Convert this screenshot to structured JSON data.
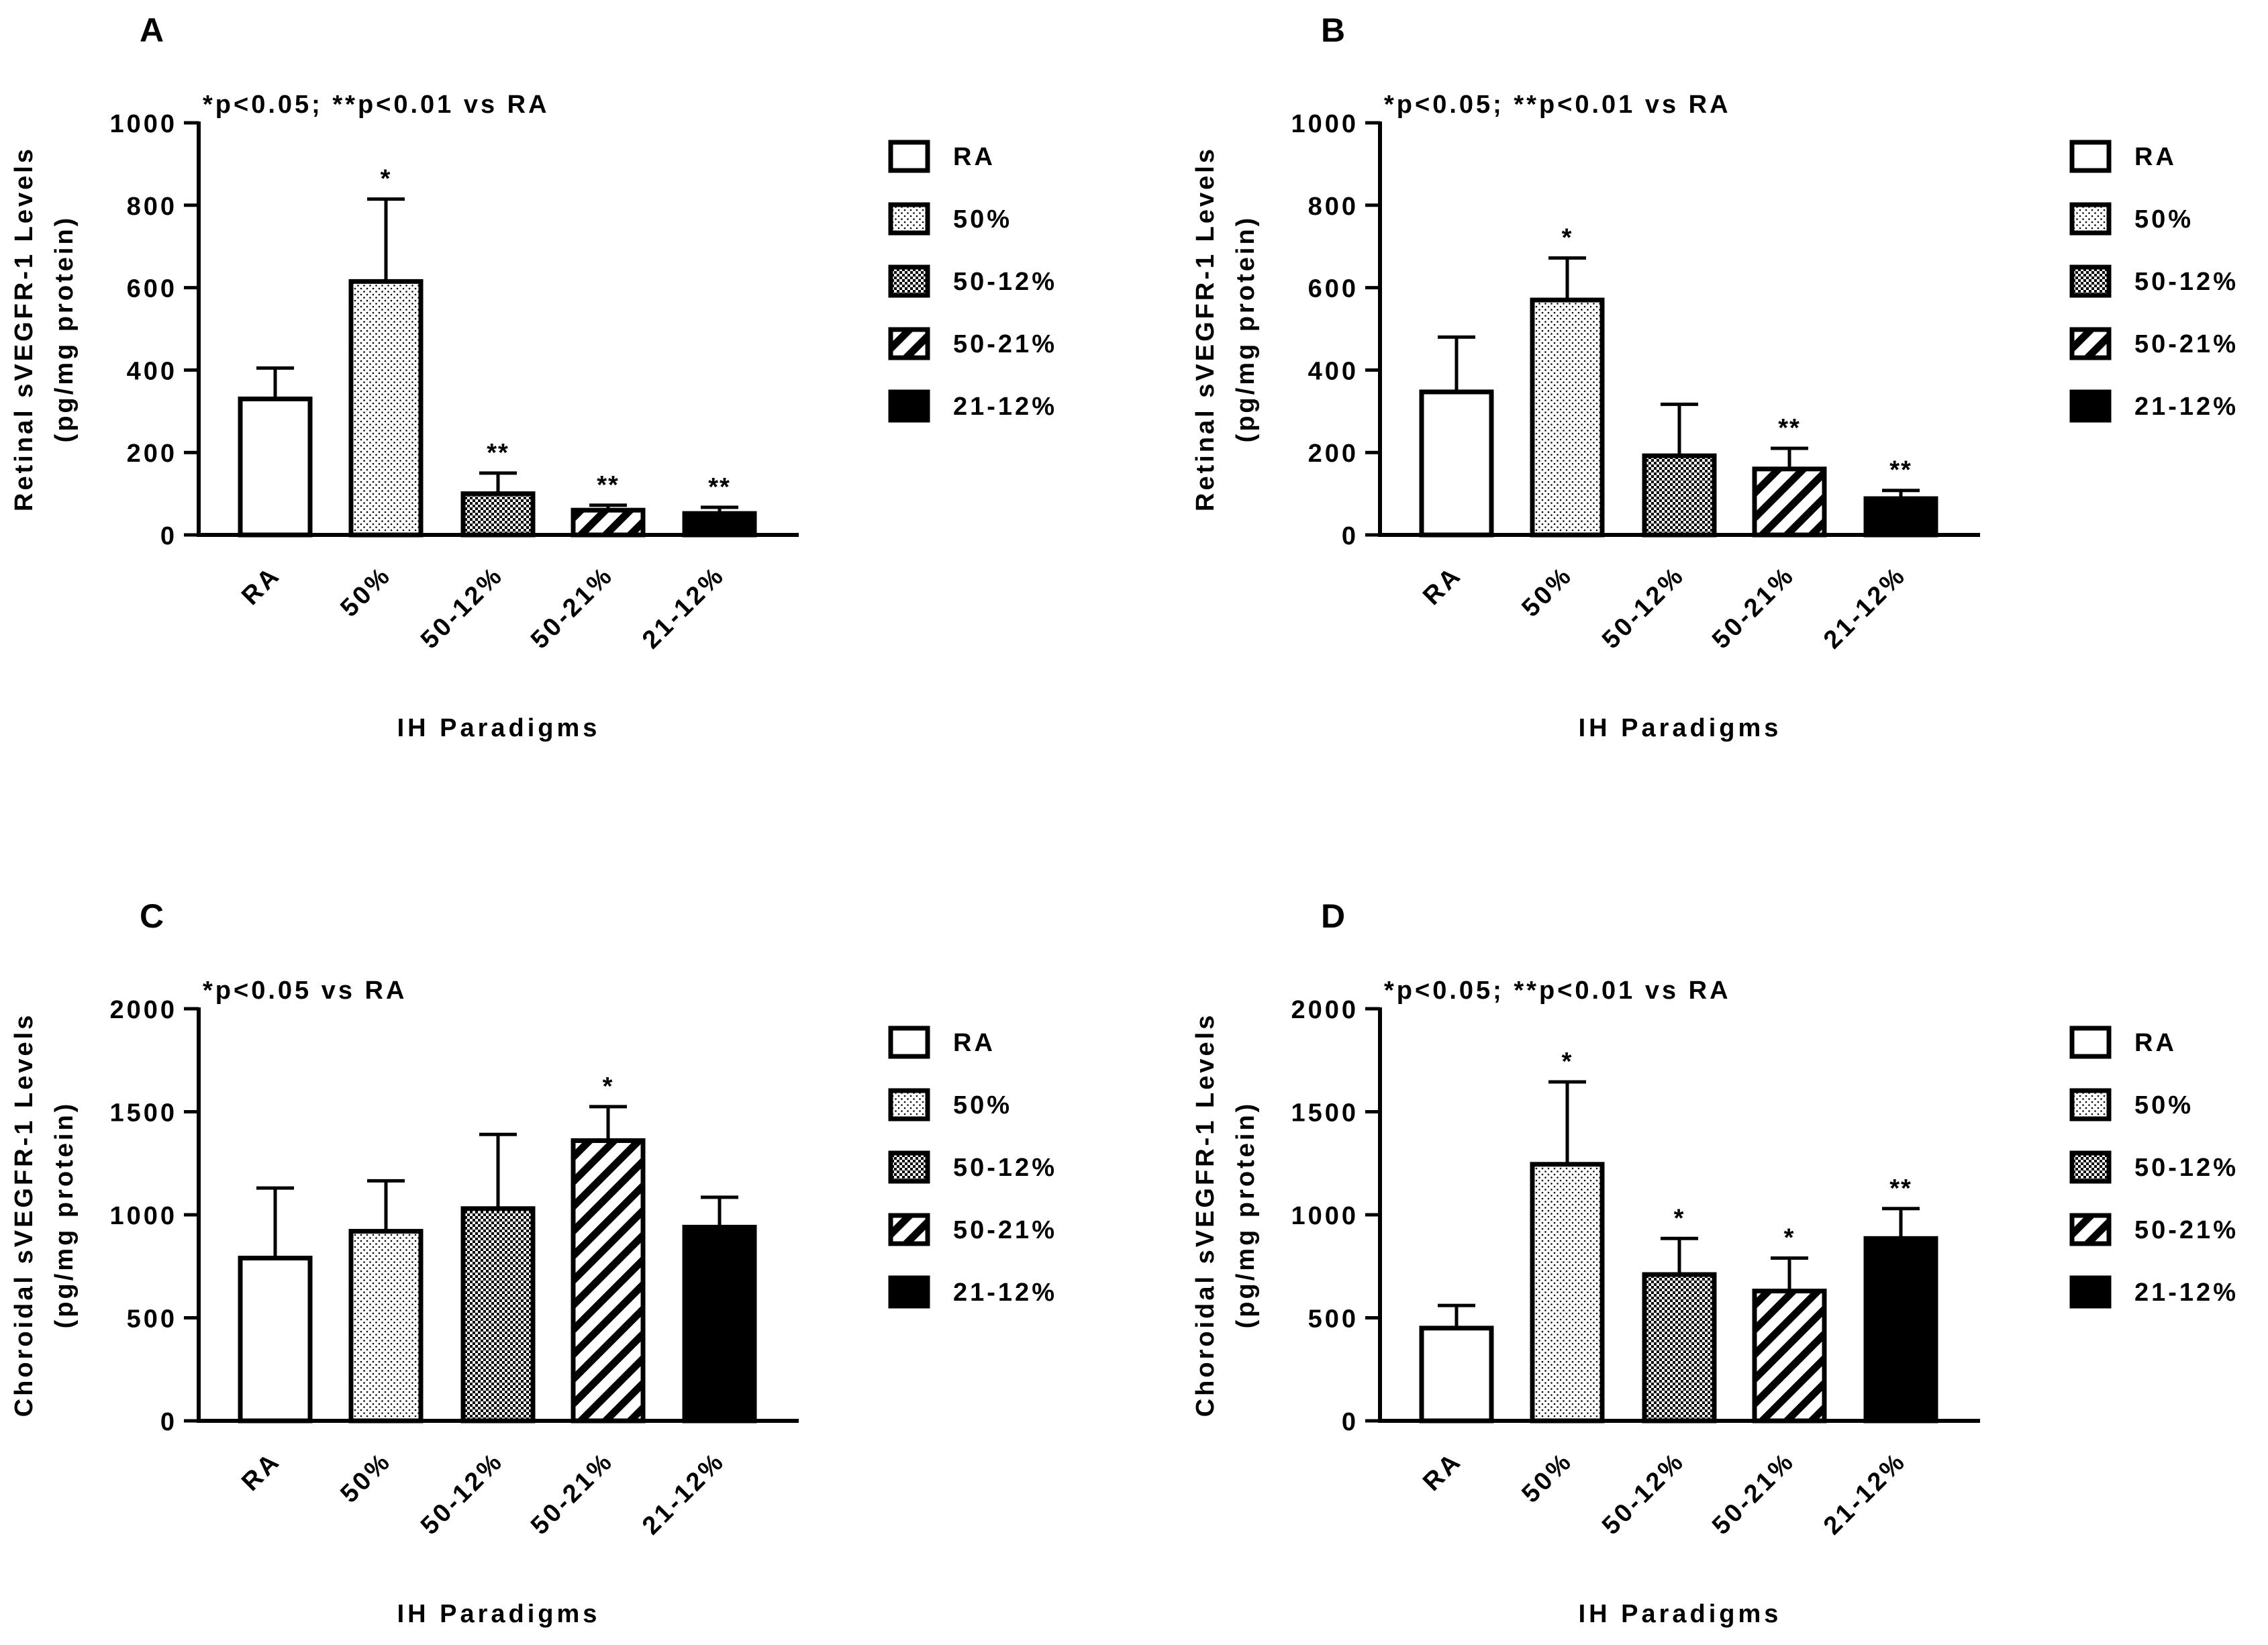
{
  "chart_data": [
    {
      "type": "bar",
      "panel_label": "A",
      "significance_note": "*p<0.05; **p<0.01 vs RA",
      "ylabel_line1": "Retinal sVEGFR-1 Levels",
      "ylabel_line2": "(pg/mg protein)",
      "xlabel": "IH Paradigms",
      "ylim": [
        0,
        1000
      ],
      "yticks": [
        0,
        200,
        400,
        600,
        800,
        1000
      ],
      "categories": [
        "RA",
        "50%",
        "50-12%",
        "50-21%",
        "21-12%"
      ],
      "values": [
        330,
        615,
        100,
        60,
        52
      ],
      "errors": [
        75,
        200,
        50,
        12,
        15
      ],
      "stars": [
        "",
        "*",
        "**",
        "**",
        "**"
      ],
      "legend": [
        "RA",
        "50%",
        "50-12%",
        "50-21%",
        "21-12%"
      ]
    },
    {
      "type": "bar",
      "panel_label": "B",
      "significance_note": "*p<0.05; **p<0.01 vs RA",
      "ylabel_line1": "Retinal sVEGFR-1 Levels",
      "ylabel_line2": "(pg/mg protein)",
      "xlabel": "IH Paradigms",
      "ylim": [
        0,
        1000
      ],
      "yticks": [
        0,
        200,
        400,
        600,
        800,
        1000
      ],
      "categories": [
        "RA",
        "50%",
        "50-12%",
        "50-21%",
        "21-12%"
      ],
      "values": [
        347,
        570,
        192,
        160,
        88
      ],
      "errors": [
        133,
        102,
        125,
        50,
        20
      ],
      "stars": [
        "",
        "*",
        "",
        "**",
        "**"
      ],
      "legend": [
        "RA",
        "50%",
        "50-12%",
        "50-21%",
        "21-12%"
      ]
    },
    {
      "type": "bar",
      "panel_label": "C",
      "significance_note": "*p<0.05 vs RA",
      "ylabel_line1": "Choroidal sVEGFR-1 Levels",
      "ylabel_line2": "(pg/mg protein)",
      "xlabel": "IH Paradigms",
      "ylim": [
        0,
        2000
      ],
      "yticks": [
        0,
        500,
        1000,
        1500,
        2000
      ],
      "categories": [
        "RA",
        "50%",
        "50-12%",
        "50-21%",
        "21-12%"
      ],
      "values": [
        790,
        920,
        1030,
        1360,
        940
      ],
      "errors": [
        340,
        245,
        360,
        165,
        145
      ],
      "stars": [
        "",
        "",
        "",
        "*",
        ""
      ],
      "legend": [
        "RA",
        "50%",
        "50-12%",
        "50-21%",
        "21-12%"
      ]
    },
    {
      "type": "bar",
      "panel_label": "D",
      "significance_note": "*p<0.05; **p<0.01 vs RA",
      "ylabel_line1": "Choroidal sVEGFR-1 Levels",
      "ylabel_line2": "(pg/mg protein)",
      "xlabel": "IH Paradigms",
      "ylim": [
        0,
        2000
      ],
      "yticks": [
        0,
        500,
        1000,
        1500,
        2000
      ],
      "categories": [
        "RA",
        "50%",
        "50-12%",
        "50-21%",
        "21-12%"
      ],
      "values": [
        450,
        1245,
        710,
        630,
        885
      ],
      "errors": [
        110,
        400,
        175,
        160,
        145
      ],
      "stars": [
        "",
        "*",
        "*",
        "*",
        "**"
      ],
      "legend": [
        "RA",
        "50%",
        "50-12%",
        "50-21%",
        "21-12%"
      ]
    }
  ]
}
